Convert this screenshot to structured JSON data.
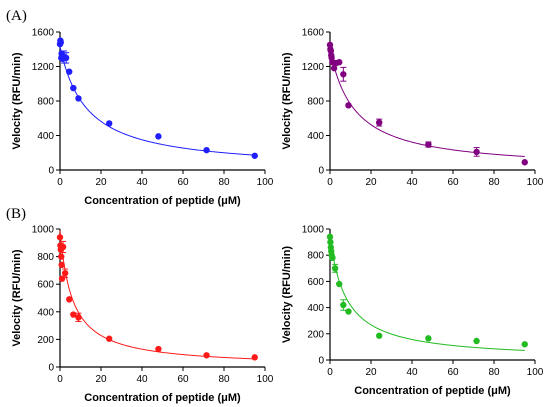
{
  "panels": {
    "A": "(A)",
    "B": "(B)"
  },
  "chart_data": [
    {
      "type": "scatter",
      "panel": "A",
      "color": "#1f1fff",
      "xlabel": "Concentration of peptide (μM)",
      "ylabel": "Velocity (RFU/min)",
      "xlim": [
        0,
        100
      ],
      "ylim": [
        0,
        1600
      ],
      "xticks": [
        0,
        20,
        40,
        60,
        80,
        100
      ],
      "yticks": [
        0,
        400,
        800,
        1200,
        1600
      ],
      "points": [
        {
          "x": 0.0,
          "y": 1460
        },
        {
          "x": 0.2,
          "y": 1500
        },
        {
          "x": 0.4,
          "y": 1480
        },
        {
          "x": 0.6,
          "y": 1300
        },
        {
          "x": 0.8,
          "y": 1350
        },
        {
          "x": 1.2,
          "y": 1290
        },
        {
          "x": 2.0,
          "y": 1310,
          "err": 70
        },
        {
          "x": 3.0,
          "y": 1300,
          "err": 60
        },
        {
          "x": 4.5,
          "y": 1140
        },
        {
          "x": 6.5,
          "y": 950
        },
        {
          "x": 9.0,
          "y": 830
        },
        {
          "x": 24.0,
          "y": 540
        },
        {
          "x": 48.0,
          "y": 390
        },
        {
          "x": 71.5,
          "y": 230
        },
        {
          "x": 95.0,
          "y": 165
        }
      ],
      "fit": {
        "ymax": 1430,
        "k": 13
      }
    },
    {
      "type": "scatter",
      "panel": "A-right",
      "color": "#800080",
      "xlabel": "",
      "ylabel": "Velocity (RFU/min)",
      "xlim": [
        0,
        100
      ],
      "ylim": [
        0,
        1600
      ],
      "xticks": [
        0,
        20,
        40,
        60,
        80,
        100
      ],
      "yticks": [
        0,
        400,
        800,
        1200,
        1600
      ],
      "points": [
        {
          "x": 0.0,
          "y": 1450
        },
        {
          "x": 0.2,
          "y": 1400
        },
        {
          "x": 0.4,
          "y": 1380
        },
        {
          "x": 0.6,
          "y": 1330
        },
        {
          "x": 0.8,
          "y": 1300
        },
        {
          "x": 1.2,
          "y": 1250
        },
        {
          "x": 2.0,
          "y": 1180
        },
        {
          "x": 3.0,
          "y": 1240
        },
        {
          "x": 4.5,
          "y": 1250
        },
        {
          "x": 6.5,
          "y": 1110,
          "err": 80
        },
        {
          "x": 9.0,
          "y": 750
        },
        {
          "x": 24.0,
          "y": 550,
          "err": 40
        },
        {
          "x": 48.0,
          "y": 295,
          "err": 30
        },
        {
          "x": 71.5,
          "y": 210,
          "err": 50
        },
        {
          "x": 95.0,
          "y": 90
        }
      ],
      "fit": {
        "ymax": 1400,
        "k": 12
      }
    },
    {
      "type": "scatter",
      "panel": "B",
      "color": "#ff1a1a",
      "xlabel": "Concentration of peptide (μM)",
      "ylabel": "Velocity (RFU/min)",
      "xlim": [
        0,
        100
      ],
      "ylim": [
        0,
        1000
      ],
      "xticks": [
        0,
        20,
        40,
        60,
        80,
        100
      ],
      "yticks": [
        0,
        200,
        400,
        600,
        800,
        1000
      ],
      "points": [
        {
          "x": 0.0,
          "y": 940
        },
        {
          "x": 0.2,
          "y": 880
        },
        {
          "x": 0.4,
          "y": 850
        },
        {
          "x": 0.6,
          "y": 800
        },
        {
          "x": 0.8,
          "y": 740
        },
        {
          "x": 1.0,
          "y": 640
        },
        {
          "x": 1.5,
          "y": 870,
          "err": 40
        },
        {
          "x": 2.5,
          "y": 680,
          "err": 30
        },
        {
          "x": 4.5,
          "y": 490
        },
        {
          "x": 6.5,
          "y": 380
        },
        {
          "x": 9.0,
          "y": 360,
          "err": 30
        },
        {
          "x": 24.0,
          "y": 205
        },
        {
          "x": 48.0,
          "y": 130
        },
        {
          "x": 71.5,
          "y": 85
        },
        {
          "x": 95.0,
          "y": 70
        }
      ],
      "fit": {
        "ymax": 990,
        "k": 6
      }
    },
    {
      "type": "scatter",
      "panel": "B-right",
      "color": "#22bb22",
      "xlabel": "Concentration of peptide (μM)",
      "ylabel": "Velocity (RFU/min)",
      "xlim": [
        0,
        100
      ],
      "ylim": [
        0,
        1000
      ],
      "xticks": [
        0,
        20,
        40,
        60,
        80,
        100
      ],
      "yticks": [
        0,
        200,
        400,
        600,
        800,
        1000
      ],
      "points": [
        {
          "x": 0.0,
          "y": 940
        },
        {
          "x": 0.2,
          "y": 900
        },
        {
          "x": 0.4,
          "y": 860
        },
        {
          "x": 0.6,
          "y": 830
        },
        {
          "x": 0.8,
          "y": 800
        },
        {
          "x": 1.2,
          "y": 780
        },
        {
          "x": 2.5,
          "y": 700,
          "err": 30
        },
        {
          "x": 4.5,
          "y": 580
        },
        {
          "x": 6.5,
          "y": 420,
          "err": 40
        },
        {
          "x": 9.0,
          "y": 370
        },
        {
          "x": 24.0,
          "y": 185
        },
        {
          "x": 48.0,
          "y": 165
        },
        {
          "x": 71.5,
          "y": 145
        },
        {
          "x": 95.0,
          "y": 120
        }
      ],
      "fit": {
        "ymax": 940,
        "k": 8
      }
    }
  ]
}
